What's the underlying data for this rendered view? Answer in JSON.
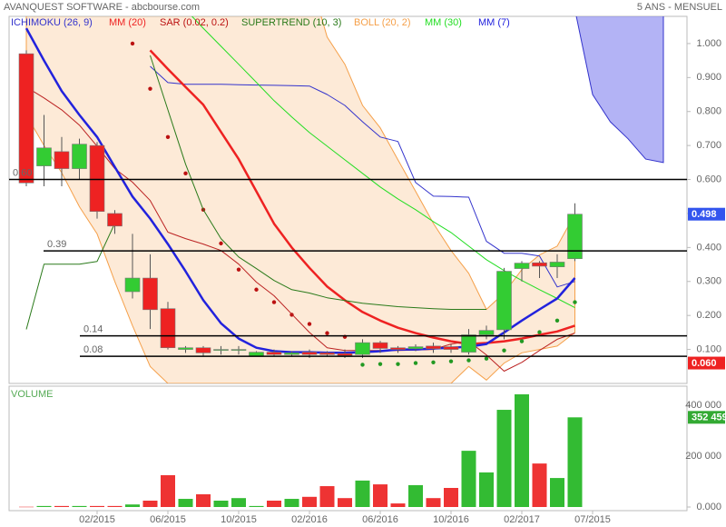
{
  "header": {
    "title": "AVANQUEST SOFTWARE - abcbourse.com",
    "period": "5 ANS - MENSUEL"
  },
  "chart_data": [
    {
      "type": "candlestick",
      "ylim": [
        0,
        1.08
      ],
      "yticks": [
        {
          "value": 0.1,
          "label": "0.100"
        },
        {
          "value": 0.2,
          "label": "0.200"
        },
        {
          "value": 0.3,
          "label": "0.300"
        },
        {
          "value": 0.4,
          "label": "0.400"
        },
        {
          "value": 0.5,
          "label": "0.500"
        },
        {
          "value": 0.6,
          "label": "0.600"
        },
        {
          "value": 0.7,
          "label": "0.700"
        },
        {
          "value": 0.8,
          "label": "0.800"
        },
        {
          "value": 0.9,
          "label": "0.900"
        },
        {
          "value": 1,
          "label": "1.000"
        }
      ],
      "up_color": "#33cc33",
      "down_color": "#ee2222",
      "open": [
        0.97,
        0.64,
        0.682,
        0.632,
        0.7,
        0.5,
        0.27,
        0.31,
        0.22,
        0.1,
        0.105,
        0.098,
        0.098,
        0.08,
        0.092,
        0.085,
        0.092,
        0.09,
        0.088,
        0.085,
        0.12,
        0.105,
        0.102,
        0.11,
        0.108,
        0.092,
        0.143,
        0.158,
        0.338,
        0.355,
        0.343,
        0.367,
        null,
        null,
        null,
        null,
        null
      ],
      "high": [
        0.98,
        0.79,
        0.725,
        0.72,
        0.71,
        0.51,
        0.44,
        0.38,
        0.24,
        0.11,
        0.11,
        0.11,
        0.11,
        0.095,
        0.1,
        0.095,
        0.1,
        0.095,
        0.1,
        0.13,
        0.125,
        0.11,
        0.115,
        0.12,
        0.115,
        0.16,
        0.17,
        0.34,
        0.36,
        0.36,
        0.38,
        0.53,
        null,
        null,
        null,
        null,
        null
      ],
      "low": [
        0.58,
        0.58,
        0.58,
        0.6,
        0.485,
        0.44,
        0.25,
        0.16,
        0.1,
        0.09,
        0.08,
        0.085,
        0.085,
        0.08,
        0.08,
        0.08,
        0.075,
        0.08,
        0.075,
        0.075,
        0.09,
        0.09,
        0.095,
        0.09,
        0.09,
        0.085,
        0.13,
        0.13,
        0.3,
        0.31,
        0.31,
        0.36,
        null,
        null,
        null,
        null,
        null
      ],
      "close": [
        0.59,
        0.693,
        0.632,
        0.704,
        0.506,
        0.463,
        0.31,
        0.217,
        0.105,
        0.105,
        0.09,
        0.1,
        0.1,
        0.092,
        0.085,
        0.09,
        0.085,
        0.085,
        0.082,
        0.12,
        0.103,
        0.1,
        0.108,
        0.102,
        0.1,
        0.143,
        0.156,
        0.33,
        0.354,
        0.345,
        0.357,
        0.498,
        null,
        null,
        null,
        null,
        null
      ],
      "series": [
        {
          "name": "ICHIMOKU (26, 9)",
          "color": "#3333cc",
          "cloud_color": "#8080ee",
          "values": [
            null,
            null,
            null,
            null,
            null,
            null,
            null,
            0.933,
            0.885,
            0.88,
            0.88,
            0.88,
            0.879,
            0.878,
            0.877,
            0.876,
            0.875,
            0.85,
            0.818,
            0.77,
            0.725,
            0.712,
            0.591,
            0.551,
            0.55,
            0.548,
            0.418,
            0.383,
            0.383,
            0.375,
            0.284,
            0.3,
            null,
            null,
            null,
            null,
            null
          ],
          "cloud_upper": [
            null,
            null,
            null,
            null,
            null,
            null,
            null,
            null,
            null,
            null,
            null,
            null,
            null,
            null,
            null,
            null,
            null,
            null,
            null,
            null,
            null,
            null,
            null,
            null,
            null,
            null,
            null,
            null,
            null,
            null,
            null,
            1.1,
            1.1,
            1.1,
            1.1,
            1.1,
            1.1
          ],
          "cloud_lower": [
            null,
            null,
            null,
            null,
            null,
            null,
            null,
            null,
            null,
            null,
            null,
            null,
            null,
            null,
            null,
            null,
            null,
            null,
            null,
            null,
            null,
            null,
            null,
            null,
            null,
            null,
            null,
            null,
            null,
            null,
            null,
            1.1,
            0.85,
            0.77,
            0.72,
            0.66,
            0.65
          ]
        },
        {
          "name": "MM (20)",
          "color": "#ee2222",
          "width": 2.5,
          "values": [
            null,
            null,
            null,
            null,
            null,
            null,
            null,
            0.98,
            0.925,
            0.872,
            0.82,
            0.74,
            0.66,
            0.565,
            0.47,
            0.4,
            0.34,
            0.285,
            0.245,
            0.21,
            0.185,
            0.164,
            0.148,
            0.135,
            0.124,
            0.116,
            0.119,
            0.124,
            0.132,
            0.143,
            0.153,
            0.17,
            null,
            null,
            null,
            null,
            null
          ]
        },
        {
          "name": "SAR (0.02, 0.2)",
          "color": "#bb1111",
          "color_below": "#229922",
          "marker": "dot",
          "values": [
            null,
            null,
            null,
            null,
            null,
            null,
            1.0,
            0.867,
            0.725,
            0.618,
            0.511,
            0.412,
            0.335,
            0.276,
            0.239,
            0.202,
            0.175,
            0.148,
            0.137,
            0.055,
            0.057,
            0.057,
            0.06,
            0.062,
            0.065,
            0.068,
            0.073,
            0.097,
            0.124,
            0.151,
            0.185,
            0.239,
            null,
            null,
            null,
            null,
            null
          ]
        },
        {
          "name": "SUPERTREND (10, 3)",
          "color": "#2a7a1a",
          "values": [
            0.159,
            0.351,
            0.351,
            0.351,
            0.359,
            0.471,
            null,
            0.965,
            0.805,
            0.645,
            0.511,
            0.426,
            0.372,
            0.338,
            0.303,
            0.276,
            0.266,
            0.252,
            0.244,
            0.236,
            0.231,
            0.226,
            0.223,
            0.22,
            0.218,
            0.218,
            0.218,
            null,
            null,
            null,
            null,
            null,
            null,
            null,
            null,
            null,
            null
          ]
        },
        {
          "name": "BOLL (20, 2)",
          "color": "#f5a04a",
          "line_color": "#bb2222",
          "values": [
            0.872,
            0.84,
            0.805,
            0.76,
            0.698,
            0.632,
            0.592,
            0.538,
            0.445,
            0.426,
            0.41,
            0.391,
            0.351,
            0.298,
            0.258,
            0.204,
            0.15,
            0.105,
            0.097,
            0.097,
            0.097,
            0.097,
            0.098,
            0.1,
            0.116,
            0.124,
            0.084,
            0.036,
            0.062,
            0.097,
            0.13,
            0.148,
            null,
            null,
            null,
            null,
            null
          ],
          "upper": [
            1.2,
            1.2,
            1.2,
            1.2,
            1.2,
            1.2,
            1.2,
            1.2,
            1.2,
            1.2,
            1.2,
            1.2,
            1.2,
            1.2,
            1.2,
            1.2,
            1.2,
            1.019,
            0.939,
            0.818,
            0.752,
            0.658,
            0.565,
            0.471,
            0.391,
            0.324,
            0.218,
            0.266,
            0.335,
            0.378,
            0.404,
            0.498,
            null,
            null,
            null,
            null,
            null
          ],
          "lower": [
            0.79,
            0.7,
            0.62,
            0.52,
            0.44,
            0.3,
            0.17,
            0.05,
            0,
            0,
            0,
            0,
            0,
            0,
            0,
            0,
            0,
            0,
            0,
            0,
            0,
            0,
            0,
            0,
            0,
            0.05,
            0.01,
            0.06,
            0.09,
            0.1,
            0.11,
            0.15,
            null,
            null,
            null,
            null,
            null
          ]
        },
        {
          "name": "MM (30)",
          "color": "#22dd22",
          "values": [
            null,
            null,
            null,
            null,
            null,
            null,
            null,
            null,
            null,
            1.1,
            1.045,
            0.992,
            0.939,
            0.886,
            0.832,
            0.784,
            0.738,
            0.698,
            0.658,
            0.618,
            0.578,
            0.543,
            0.511,
            0.476,
            0.444,
            0.404,
            0.364,
            0.332,
            0.303,
            0.276,
            0.25,
            0.223,
            null,
            null,
            null,
            null,
            null
          ]
        },
        {
          "name": "MM (7)",
          "color": "#2222dd",
          "width": 2.5,
          "values": [
            1.045,
            0.95,
            0.86,
            0.79,
            0.725,
            0.637,
            0.55,
            0.485,
            0.41,
            0.33,
            0.245,
            0.177,
            0.132,
            0.105,
            0.095,
            0.092,
            0.092,
            0.09,
            0.09,
            0.092,
            0.095,
            0.1,
            0.1,
            0.103,
            0.105,
            0.108,
            0.116,
            0.15,
            0.185,
            0.218,
            0.25,
            0.31,
            null,
            null,
            null,
            null,
            null
          ]
        }
      ],
      "levels": [
        {
          "value": 0.6,
          "label": "0.60"
        },
        {
          "value": 0.39,
          "label": "0.39"
        },
        {
          "value": 0.14,
          "label": "0.14"
        },
        {
          "value": 0.08,
          "label": "0.08"
        }
      ],
      "tags": [
        {
          "value": 0.498,
          "label": "0.498",
          "color": "#3355ee"
        },
        {
          "value": 0.06,
          "label": "0.060",
          "color": "#ee2222"
        }
      ]
    },
    {
      "type": "bar",
      "title": "VOLUME",
      "categories": [
        null,
        null,
        null,
        null,
        "02/2015",
        null,
        null,
        null,
        "06/2015",
        null,
        null,
        null,
        "10/2015",
        null,
        null,
        null,
        "02/2016",
        null,
        null,
        null,
        "06/2016",
        null,
        null,
        null,
        "10/2016",
        null,
        null,
        null,
        "02/2017",
        null,
        null,
        null,
        "07/2015",
        null,
        null,
        null,
        null
      ],
      "values": [
        1000,
        4000,
        4000,
        4000,
        4000,
        4000,
        10000,
        25000,
        125000,
        32000,
        50000,
        25000,
        35000,
        4000,
        25000,
        32000,
        40000,
        82000,
        35000,
        104000,
        89000,
        14000,
        86000,
        35000,
        75000,
        221000,
        136000,
        382000,
        443000,
        171000,
        114000,
        352459,
        null,
        null,
        null,
        null,
        null
      ],
      "up_color": "#33bb33",
      "down_color": "#ee3333",
      "ylim": [
        0,
        475000
      ],
      "yticks": [
        {
          "value": 0,
          "label": "0.000"
        },
        {
          "value": 200000,
          "label": "200 000"
        },
        {
          "value": 400000,
          "label": "400 000"
        }
      ],
      "tag": {
        "value": 352459,
        "label": "352 459",
        "color": "#33aa33"
      }
    }
  ]
}
